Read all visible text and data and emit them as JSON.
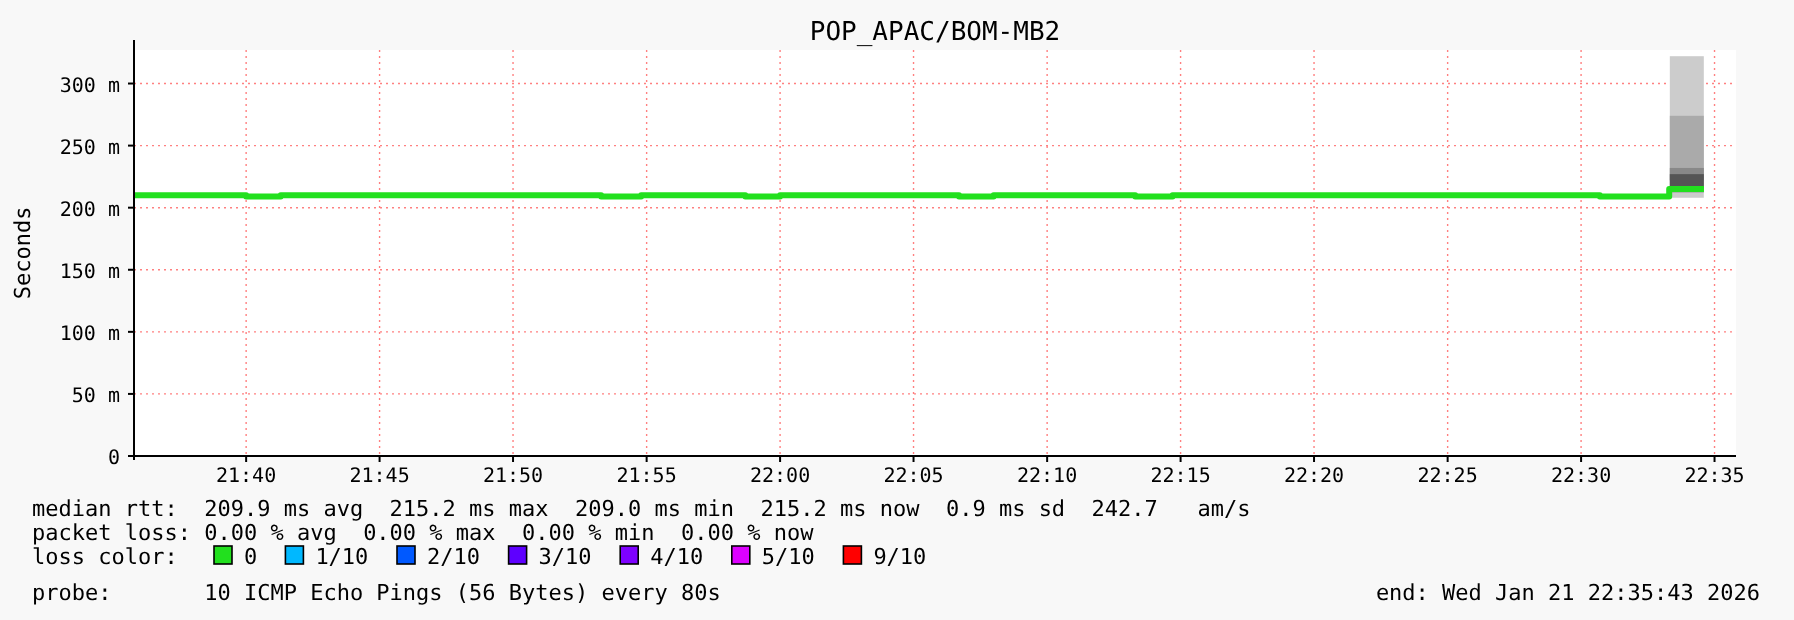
{
  "chart_data": {
    "type": "step",
    "title": "POP_APAC/BOM-MB2",
    "ylabel": "Seconds",
    "xlim": [
      21.5967,
      22.5967
    ],
    "xticks": [
      {
        "value": 21.6667,
        "label": "21:40"
      },
      {
        "value": 21.75,
        "label": "21:45"
      },
      {
        "value": 21.8333,
        "label": "21:50"
      },
      {
        "value": 21.9167,
        "label": "21:55"
      },
      {
        "value": 22.0,
        "label": "22:00"
      },
      {
        "value": 22.0833,
        "label": "22:05"
      },
      {
        "value": 22.1667,
        "label": "22:10"
      },
      {
        "value": 22.25,
        "label": "22:15"
      },
      {
        "value": 22.3333,
        "label": "22:20"
      },
      {
        "value": 22.4167,
        "label": "22:25"
      },
      {
        "value": 22.5,
        "label": "22:30"
      },
      {
        "value": 22.5833,
        "label": "22:35"
      }
    ],
    "ylim": [
      0,
      327
    ],
    "yticks": [
      0,
      {
        "value": 50,
        "label": "50 m"
      },
      {
        "value": 100,
        "label": "100 m"
      },
      {
        "value": 150,
        "label": "150 m"
      },
      {
        "value": 200,
        "label": "200 m"
      },
      {
        "value": 250,
        "label": "250 m"
      },
      {
        "value": 300,
        "label": "300 m"
      }
    ],
    "grid": true,
    "legend": "bottom",
    "legend_title": "loss color:",
    "series": [
      {
        "type": "bar",
        "color": "#cccccc",
        "x": [
          22.566
        ],
        "base": [
          208
        ],
        "values": [
          114
        ]
      },
      {
        "type": "bar",
        "color": "#aaaaaa",
        "x": [
          22.566
        ],
        "base": [
          212
        ],
        "values": [
          62
        ]
      },
      {
        "type": "bar",
        "color": "#888888",
        "x": [
          22.566
        ],
        "base": [
          222
        ],
        "values": [
          10
        ]
      },
      {
        "type": "bar",
        "color": "#555555",
        "x": [
          22.566
        ],
        "base": [
          216
        ],
        "values": [
          11
        ]
      },
      {
        "name": "0",
        "color": "#22e01e",
        "x": [
          21.5967,
          21.6667,
          21.6883,
          21.8883,
          21.9133,
          21.9783,
          22.0,
          22.1117,
          22.1333,
          22.2217,
          22.245,
          22.5117,
          22.555,
          22.5767
        ],
        "values": [
          210,
          209,
          210,
          209,
          210,
          209,
          210,
          209,
          210,
          209,
          210,
          209,
          215,
          215
        ]
      },
      {
        "name": "1/10",
        "color": "#00b8ff"
      },
      {
        "name": "2/10",
        "color": "#0059ff"
      },
      {
        "name": "3/10",
        "color": "#5e00ff"
      },
      {
        "name": "4/10",
        "color": "#7e00ff"
      },
      {
        "name": "5/10",
        "color": "#dd00ff"
      },
      {
        "name": "9/10",
        "color": "#ff0000"
      }
    ],
    "annotations": [
      "median rtt:  209.9 ms avg  215.2 ms max  209.0 ms min  215.2 ms now  0.9 ms sd  242.7   am/s",
      "packet loss: 0.00 % avg  0.00 % max  0.00 % min  0.00 % now",
      "probe:       10 ICMP Echo Pings (56 Bytes) every 80s",
      "end: Wed Jan 21 22:35:43 2026"
    ]
  }
}
